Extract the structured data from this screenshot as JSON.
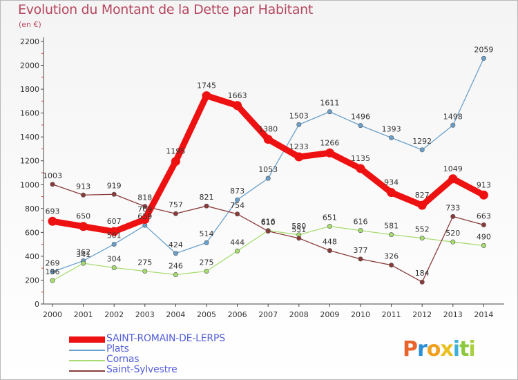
{
  "title": "Evolution du Montant de la Dette par Habitant",
  "subtitle": "(en €)",
  "brand": {
    "text": "Proxiti",
    "colors": [
      "#e8642c",
      "#2c8fd6",
      "#f0a020",
      "#e8c020",
      "#3cb0d8",
      "#8cc83c",
      "#a8d040"
    ]
  },
  "chart_data": {
    "type": "line",
    "title": "Evolution du Montant de la Dette par Habitant",
    "subtitle": "(en €)",
    "xlabel": "",
    "ylabel": "",
    "x": [
      "2000",
      "2001",
      "2002",
      "2003",
      "2004",
      "2005",
      "2006",
      "2007",
      "2008",
      "2009",
      "2010",
      "2011",
      "2012",
      "2013",
      "2014"
    ],
    "ylim": [
      0,
      2200
    ],
    "yticks": [
      0,
      200,
      400,
      600,
      800,
      1000,
      1200,
      1400,
      1600,
      1800,
      2000,
      2200
    ],
    "grid": false,
    "legend_position": "bottom-left",
    "series": [
      {
        "name": "SAINT-ROMAIN-DE-LERPS",
        "color": "#ee1111",
        "emphasis": true,
        "values": [
          693,
          650,
          607,
          709,
          1195,
          1745,
          1663,
          1380,
          1233,
          1266,
          1135,
          934,
          827,
          1049,
          913
        ],
        "labels": [
          "693",
          "650",
          "607",
          "709",
          "1195",
          "1745",
          "1663",
          "1380",
          "1233",
          "1266",
          "1135",
          "934",
          "827",
          "1049",
          "913"
        ]
      },
      {
        "name": "Plats",
        "color": "#6aa0cc",
        "emphasis": false,
        "values": [
          269,
          362,
          501,
          659,
          424,
          514,
          873,
          1053,
          1503,
          1611,
          1496,
          1393,
          1292,
          1498,
          2059
        ],
        "labels": [
          "269",
          "362",
          "501",
          "659",
          "424",
          "514",
          "873",
          "1053",
          "1503",
          "1611",
          "1496",
          "1393",
          "1292",
          "1498",
          "2059"
        ]
      },
      {
        "name": "Cornas",
        "color": "#a8dc70",
        "emphasis": false,
        "values": [
          196,
          341,
          304,
          275,
          246,
          275,
          444,
          616,
          580,
          651,
          616,
          581,
          552,
          520,
          490
        ],
        "labels": [
          "196",
          "341",
          "304",
          "275",
          "246",
          "275",
          "444",
          "616",
          "580",
          "651",
          "616",
          "581",
          "552",
          "520",
          "490"
        ]
      },
      {
        "name": "Saint-Sylvestre",
        "color": "#8b3a3a",
        "emphasis": false,
        "values": [
          1003,
          913,
          919,
          818,
          757,
          821,
          754,
          610,
          551,
          448,
          377,
          326,
          184,
          733,
          663
        ],
        "labels": [
          "1003",
          "913",
          "919",
          "818",
          "757",
          "821",
          "754",
          "610",
          "551",
          "448",
          "377",
          "326",
          "184",
          "733",
          "663"
        ]
      }
    ]
  }
}
